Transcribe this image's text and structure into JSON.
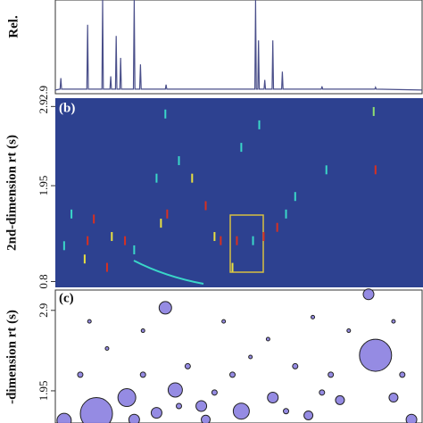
{
  "chart_data": [
    {
      "type": "line",
      "ylabel": "Rel.",
      "annotation": "2.9",
      "color": "#4a4f8a",
      "xlim": [
        0,
        100
      ],
      "ylim": [
        0,
        100
      ],
      "x": [
        0,
        1.3,
        1.5,
        1.7,
        8.6,
        8.8,
        9.0,
        12.7,
        12.9,
        13.1,
        14.9,
        15.1,
        15.3,
        16.4,
        16.6,
        16.8,
        17.6,
        17.8,
        18.0,
        21.3,
        21.5,
        21.7,
        23.0,
        23.2,
        23.4,
        30.0,
        30.2,
        30.4,
        54.4,
        54.6,
        54.8,
        55.2,
        55.4,
        55.6,
        56.9,
        57.1,
        57.3,
        59.1,
        59.3,
        59.5,
        61.7,
        61.9,
        62.1,
        72.5,
        72.7,
        72.9,
        87.1,
        87.3,
        87.5,
        100
      ],
      "values": [
        2,
        3,
        15,
        3,
        3,
        73,
        3,
        3,
        100,
        3,
        3,
        17,
        3,
        3,
        61,
        3,
        3,
        37,
        3,
        3,
        100,
        3,
        3,
        30,
        3,
        3,
        8,
        3,
        3,
        100,
        3,
        3,
        56,
        3,
        3,
        13,
        3,
        3,
        56,
        3,
        3,
        22,
        3,
        3,
        6,
        3,
        3,
        5,
        3,
        2
      ]
    },
    {
      "type": "scatter",
      "panel_label": "(b)",
      "ylabel": "2nd-dimension rt (s)",
      "background": "#2d4190",
      "xlim": [
        0,
        100
      ],
      "ylim": [
        0.73,
        3.0
      ],
      "yticks": [
        0.8,
        1.95,
        2.9
      ],
      "x": [
        86.8,
        87.3,
        30.0,
        4.4,
        10.5,
        8.8,
        2.4,
        15.4,
        19.0,
        21.5,
        28.8,
        30.5,
        33.7,
        41.0,
        43.4,
        45.1,
        49.5,
        53.9,
        56.8,
        60.5,
        62.9,
        50.7,
        65.4,
        73.9,
        55.6,
        37.3,
        27.6,
        14.1,
        8.0,
        48.3
      ],
      "values": [
        2.84,
        2.14,
        2.81,
        1.61,
        1.55,
        1.29,
        1.23,
        1.34,
        1.29,
        1.18,
        1.5,
        1.61,
        2.25,
        1.71,
        1.34,
        1.29,
        1.29,
        1.29,
        1.34,
        1.45,
        1.61,
        2.41,
        1.82,
        2.14,
        2.68,
        2.04,
        2.04,
        0.97,
        1.07,
        0.97
      ],
      "colors": [
        "#8fe070",
        "#d83020",
        "#3ad6c8",
        "#3ad6c8",
        "#d83020",
        "#d83020",
        "#3ad6c8",
        "#e8e040",
        "#d83020",
        "#3ad6c8",
        "#e8e040",
        "#d83020",
        "#3ad6c8",
        "#d83020",
        "#e8e040",
        "#d83020",
        "#d83020",
        "#3ad6c8",
        "#d83020",
        "#d83020",
        "#3ad6c8",
        "#3ad6c8",
        "#3ad6c8",
        "#3ad6c8",
        "#3ad6c8",
        "#e8e040",
        "#3ad6c8",
        "#d83020",
        "#e8e040",
        "#e8e040"
      ]
    },
    {
      "type": "bubble",
      "panel_label": "(c)",
      "ylabel": "-dimension rt (s)",
      "color": "#8a7ee0",
      "xlim": [
        0,
        100
      ],
      "ylim": [
        1.57,
        3.14
      ],
      "yticks": [
        1.95,
        2.9
      ],
      "x": [
        87.3,
        11.2,
        2.4,
        30.0,
        85.4,
        19.5,
        32.7,
        27.6,
        39.8,
        50.7,
        59.3,
        77.6,
        92.2,
        97.1,
        69.0,
        21.5,
        41.0,
        9.3,
        14.1,
        23.9,
        45.9,
        58.0,
        70.2,
        80.0,
        92.2,
        36.1,
        48.3,
        65.4,
        75.1,
        6.8,
        94.6,
        53.2,
        23.9,
        43.4,
        62.9,
        72.7,
        33.7
      ],
      "values": [
        2.37,
        1.68,
        1.6,
        2.93,
        3.09,
        1.87,
        1.96,
        1.69,
        1.77,
        1.71,
        1.87,
        1.84,
        1.87,
        1.61,
        1.66,
        1.61,
        1.61,
        2.77,
        2.45,
        2.66,
        2.77,
        2.56,
        2.82,
        2.66,
        2.77,
        2.24,
        2.14,
        2.24,
        2.14,
        2.14,
        2.14,
        2.35,
        2.14,
        1.93,
        1.71,
        1.93,
        1.77
      ],
      "sizes": [
        18,
        18,
        8,
        7,
        6,
        10,
        8,
        6,
        6,
        9,
        6,
        5,
        5,
        6,
        5,
        6,
        5,
        2,
        2,
        2,
        2,
        2,
        2,
        2,
        2,
        3,
        3,
        3,
        3,
        3,
        3,
        2,
        3,
        3,
        3,
        3,
        3
      ]
    }
  ]
}
